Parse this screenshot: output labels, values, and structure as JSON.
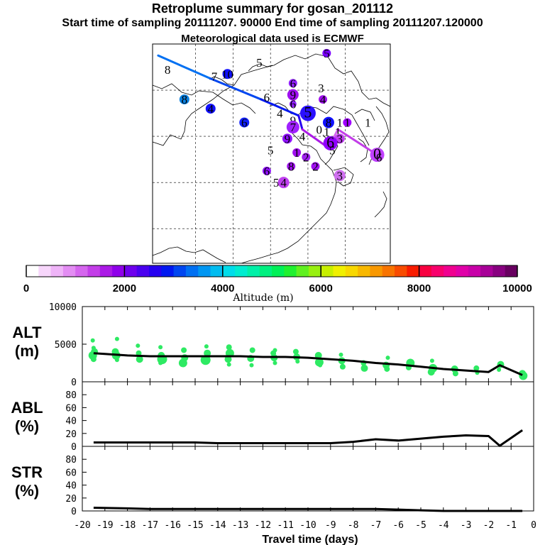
{
  "header": {
    "title": "Retroplume summary for gosan_201112",
    "subtitle": "Start time of sampling 20111207. 90000     End time of sampling 20111207.120000",
    "met_note": "Meteorological data used is ECMWF"
  },
  "colorbar": {
    "colors": [
      "#ffffff",
      "#f7d6fb",
      "#efb4f8",
      "#e38df3",
      "#d566ee",
      "#c33ee8",
      "#ab1ae6",
      "#8f00ea",
      "#6e00ed",
      "#4a00ef",
      "#2600f0",
      "#0018f0",
      "#0046f0",
      "#0070f2",
      "#0096f2",
      "#00bcf0",
      "#00dcea",
      "#00ecd0",
      "#00f0a8",
      "#00f080",
      "#00f058",
      "#20f030",
      "#60f020",
      "#98f010",
      "#c8f000",
      "#f0f000",
      "#f8d800",
      "#f8b800",
      "#f89800",
      "#f87400",
      "#f84c00",
      "#f81c00",
      "#f80040",
      "#f8006c",
      "#f00090",
      "#e000a8",
      "#c800a8",
      "#a80098",
      "#880080",
      "#680060"
    ],
    "labels": [
      "0",
      "2000",
      "4000",
      "6000",
      "8000",
      "10000"
    ],
    "title": "Altitude (m)"
  },
  "map": {
    "markers": [
      {
        "label": "5",
        "lon": -11.0,
        "lat": 49.6,
        "color": "#7a00ff",
        "size": 6
      },
      {
        "label": "5",
        "lon": -14.6,
        "lat": 49.2,
        "color": "#2040ff",
        "size": 0
      },
      {
        "label": "8",
        "lon": -19.5,
        "lat": 48.9,
        "color": "#1a8cff",
        "size": 0
      },
      {
        "label": "10",
        "lon": -16.3,
        "lat": 48.7,
        "color": "#1010ff",
        "size": 7
      },
      {
        "label": "7",
        "lon": -17.0,
        "lat": 48.6,
        "color": "#1010ff",
        "size": 0
      },
      {
        "label": "6",
        "lon": -12.8,
        "lat": 48.3,
        "color": "#9020ff",
        "size": 6
      },
      {
        "label": "3",
        "lon": -11.3,
        "lat": 48.1,
        "color": "#a000ff",
        "size": 0
      },
      {
        "label": "8",
        "lon": -18.6,
        "lat": 47.6,
        "color": "#0a80e0",
        "size": 7
      },
      {
        "label": "9",
        "lon": -12.8,
        "lat": 47.8,
        "color": "#a010f0",
        "size": 8
      },
      {
        "label": "4",
        "lon": -11.2,
        "lat": 47.6,
        "color": "#a010f0",
        "size": 6
      },
      {
        "label": "6",
        "lon": -14.2,
        "lat": 47.7,
        "color": "#000000",
        "size": 0
      },
      {
        "label": "6",
        "lon": -12.8,
        "lat": 47.4,
        "color": "#9020ff",
        "size": 5
      },
      {
        "label": "4",
        "lon": -17.2,
        "lat": 47.2,
        "color": "#1010ff",
        "size": 7
      },
      {
        "label": "5",
        "lon": -12.0,
        "lat": 47.0,
        "color": "#2a10ff",
        "size": 11
      },
      {
        "label": "4",
        "lon": -13.5,
        "lat": 47.0,
        "color": "#000000",
        "size": 0
      },
      {
        "label": "9",
        "lon": -12.8,
        "lat": 46.7,
        "color": "#6a20ff",
        "size": 0
      },
      {
        "label": "6",
        "lon": -15.4,
        "lat": 46.6,
        "color": "#1020ff",
        "size": 7
      },
      {
        "label": "8",
        "lon": -10.9,
        "lat": 46.6,
        "color": "#1010ff",
        "size": 8
      },
      {
        "label": "1",
        "lon": -10.3,
        "lat": 46.6,
        "color": "#a000ff",
        "size": 0
      },
      {
        "label": "1",
        "lon": -9.9,
        "lat": 46.6,
        "color": "#a000ff",
        "size": 6
      },
      {
        "label": "1",
        "lon": -8.8,
        "lat": 46.6,
        "color": "#b010ff",
        "size": 0
      },
      {
        "label": "7",
        "lon": -12.8,
        "lat": 46.4,
        "color": "#a020ff",
        "size": 9
      },
      {
        "label": "0",
        "lon": -11.4,
        "lat": 46.3,
        "color": "#1010ff",
        "size": 0
      },
      {
        "label": "4",
        "lon": -12.3,
        "lat": 46.0,
        "color": "#000000",
        "size": 0
      },
      {
        "label": "1",
        "lon": -11.0,
        "lat": 46.2,
        "color": "#000000",
        "size": 0
      },
      {
        "label": "1",
        "lon": -10.4,
        "lat": 46.2,
        "color": "#000000",
        "size": 0
      },
      {
        "label": "3",
        "lon": -10.3,
        "lat": 45.9,
        "color": "#c040f0",
        "size": 7
      },
      {
        "label": "6",
        "lon": -10.8,
        "lat": 45.7,
        "color": "#9000ff",
        "size": 10
      },
      {
        "label": "9",
        "lon": -13.1,
        "lat": 45.9,
        "color": "#9010ff",
        "size": 7
      },
      {
        "label": "5",
        "lon": -10.7,
        "lat": 45.4,
        "color": "#000000",
        "size": 0
      },
      {
        "label": "5",
        "lon": -14.0,
        "lat": 45.4,
        "color": "#000000",
        "size": 0
      },
      {
        "label": "1",
        "lon": -12.6,
        "lat": 45.3,
        "color": "#a010f0",
        "size": 6
      },
      {
        "label": "2",
        "lon": -12.1,
        "lat": 45.1,
        "color": "#a020f0",
        "size": 6
      },
      {
        "label": "0",
        "lon": -8.3,
        "lat": 45.2,
        "color": "#c040ff",
        "size": 10
      },
      {
        "label": "6",
        "lon": -8.2,
        "lat": 45.1,
        "color": "#000000",
        "size": 0
      },
      {
        "label": "8",
        "lon": -12.9,
        "lat": 44.7,
        "color": "#a010f0",
        "size": 6
      },
      {
        "label": "2",
        "lon": -11.6,
        "lat": 44.7,
        "color": "#a010f0",
        "size": 6
      },
      {
        "label": "6",
        "lon": -14.2,
        "lat": 44.5,
        "color": "#9010ff",
        "size": 6
      },
      {
        "label": "3",
        "lon": -10.3,
        "lat": 44.3,
        "color": "#d070f0",
        "size": 8
      },
      {
        "label": "5",
        "lon": -13.7,
        "lat": 44.0,
        "color": "#000000",
        "size": 0
      },
      {
        "label": "4",
        "lon": -13.3,
        "lat": 44.0,
        "color": "#c040f0",
        "size": 8
      }
    ],
    "track": [
      {
        "lon": -20.0,
        "lat": 49.5,
        "alt": 3300
      },
      {
        "lon": -17.2,
        "lat": 48.5,
        "alt": 3100
      },
      {
        "lon": -14.5,
        "lat": 47.6,
        "alt": 2900
      },
      {
        "lon": -12.5,
        "lat": 46.9,
        "alt": 2500
      },
      {
        "lon": -12.3,
        "lat": 46.3,
        "alt": 1500
      },
      {
        "lon": -10.9,
        "lat": 45.5,
        "alt": 1200
      },
      {
        "lon": -10.4,
        "lat": 46.3,
        "alt": 1300
      },
      {
        "lon": -8.3,
        "lat": 45.2,
        "alt": 1500
      }
    ]
  },
  "chart_data": [
    {
      "type": "scatter",
      "panel": "ALT",
      "ylabel": "ALT",
      "yunit": "(m)",
      "ylim": [
        0,
        10000
      ],
      "yticks": [
        "10000",
        "5000",
        "0"
      ],
      "xlim": [
        -20,
        0
      ],
      "median_line": {
        "x": [
          -19.5,
          -19,
          -18,
          -17,
          -16,
          -15,
          -14,
          -13,
          -12,
          -11,
          -10,
          -9,
          -8,
          -7,
          -6,
          -5,
          -4,
          -3,
          -2,
          -1.5,
          -0.5
        ],
        "y": [
          3800,
          3700,
          3500,
          3400,
          3400,
          3400,
          3400,
          3400,
          3300,
          3300,
          3200,
          3000,
          2800,
          2500,
          2300,
          2000,
          1700,
          1500,
          1300,
          2200,
          900
        ]
      },
      "points": {
        "x": [
          -19.5,
          -19.5,
          -19.5,
          -19.5,
          -19.5,
          -18.5,
          -18.5,
          -18.5,
          -18.5,
          -17.5,
          -17.5,
          -17.5,
          -16.5,
          -16.5,
          -16.5,
          -16.5,
          -15.5,
          -15.5,
          -15.5,
          -14.5,
          -14.5,
          -14.5,
          -13.5,
          -13.5,
          -13.5,
          -13.5,
          -12.5,
          -12.5,
          -12.5,
          -11.5,
          -11.5,
          -11.5,
          -11.5,
          -10.5,
          -10.5,
          -10.5,
          -9.5,
          -9.5,
          -9.5,
          -8.5,
          -8.5,
          -8.5,
          -7.5,
          -7.5,
          -6.5,
          -6.5,
          -6.5,
          -5.5,
          -5.5,
          -4.5,
          -4.5,
          -4.5,
          -3.5,
          -3.5,
          -2.5,
          -2.5,
          -1.5,
          -1.5,
          -0.5,
          -0.5
        ],
        "y": [
          5500,
          4500,
          4000,
          3500,
          3000,
          5700,
          4000,
          3500,
          2900,
          4800,
          3800,
          3000,
          4600,
          3500,
          3000,
          2500,
          4200,
          3200,
          2500,
          4700,
          3800,
          2900,
          4600,
          3800,
          3000,
          2300,
          4200,
          3100,
          2200,
          4200,
          3800,
          3200,
          2500,
          4000,
          3300,
          2700,
          3500,
          2600,
          2200,
          3600,
          2800,
          2000,
          2500,
          1800,
          3200,
          2200,
          1700,
          2500,
          1900,
          2800,
          1800,
          1300,
          1700,
          1100,
          1800,
          1200,
          2300,
          1600,
          1100,
          800
        ],
        "size": [
          3,
          3,
          5,
          6,
          4,
          3,
          5,
          6,
          3,
          3,
          4,
          5,
          3,
          5,
          7,
          3,
          4,
          5,
          6,
          3,
          5,
          7,
          4,
          6,
          5,
          3,
          4,
          5,
          3,
          3,
          4,
          5,
          3,
          4,
          5,
          3,
          5,
          6,
          3,
          3,
          5,
          4,
          4,
          5,
          3,
          5,
          4,
          6,
          4,
          3,
          6,
          5,
          5,
          4,
          4,
          3,
          5,
          3,
          5,
          6
        ]
      }
    },
    {
      "type": "line",
      "panel": "ABL",
      "ylabel": "ABL",
      "yunit": "(%)",
      "ylim": [
        0,
        100
      ],
      "yticks": [
        "80",
        "60",
        "40",
        "20",
        "0"
      ],
      "xlim": [
        -20,
        0
      ],
      "x": [
        -19.5,
        -18,
        -17,
        -16,
        -15,
        -14,
        -13,
        -12,
        -11,
        -10,
        -9,
        -8,
        -7,
        -6,
        -5,
        -4,
        -3,
        -2,
        -1.5,
        -0.5
      ],
      "y": [
        6,
        6,
        6,
        6,
        6,
        5,
        5,
        5,
        5,
        5,
        5,
        7,
        11,
        9,
        12,
        15,
        17,
        16,
        1,
        25
      ]
    },
    {
      "type": "line",
      "panel": "STR",
      "ylabel": "STR",
      "yunit": "(%)",
      "ylim": [
        0,
        100
      ],
      "yticks": [
        "80",
        "60",
        "40",
        "20",
        "0"
      ],
      "xlim": [
        -20,
        0
      ],
      "xlabel": "Travel time (days)",
      "xticks": [
        "-20",
        "-19",
        "-18",
        "-17",
        "-16",
        "-15",
        "-14",
        "-13",
        "-12",
        "-11",
        "-10",
        "-9",
        "-8",
        "-7",
        "-6",
        "-5",
        "-4",
        "-3",
        "-2",
        "-1",
        "0"
      ],
      "x": [
        -19.5,
        -18,
        -17,
        -16,
        -15,
        -14,
        -13,
        -12,
        -11,
        -10,
        -9,
        -8,
        -7,
        -6,
        -5,
        -4,
        -3,
        -2,
        -1,
        -0.5
      ],
      "y": [
        5,
        4,
        3,
        3,
        3,
        3,
        3,
        3,
        3,
        3,
        3,
        3,
        3,
        2,
        1,
        0,
        0,
        0,
        0,
        0
      ]
    }
  ]
}
